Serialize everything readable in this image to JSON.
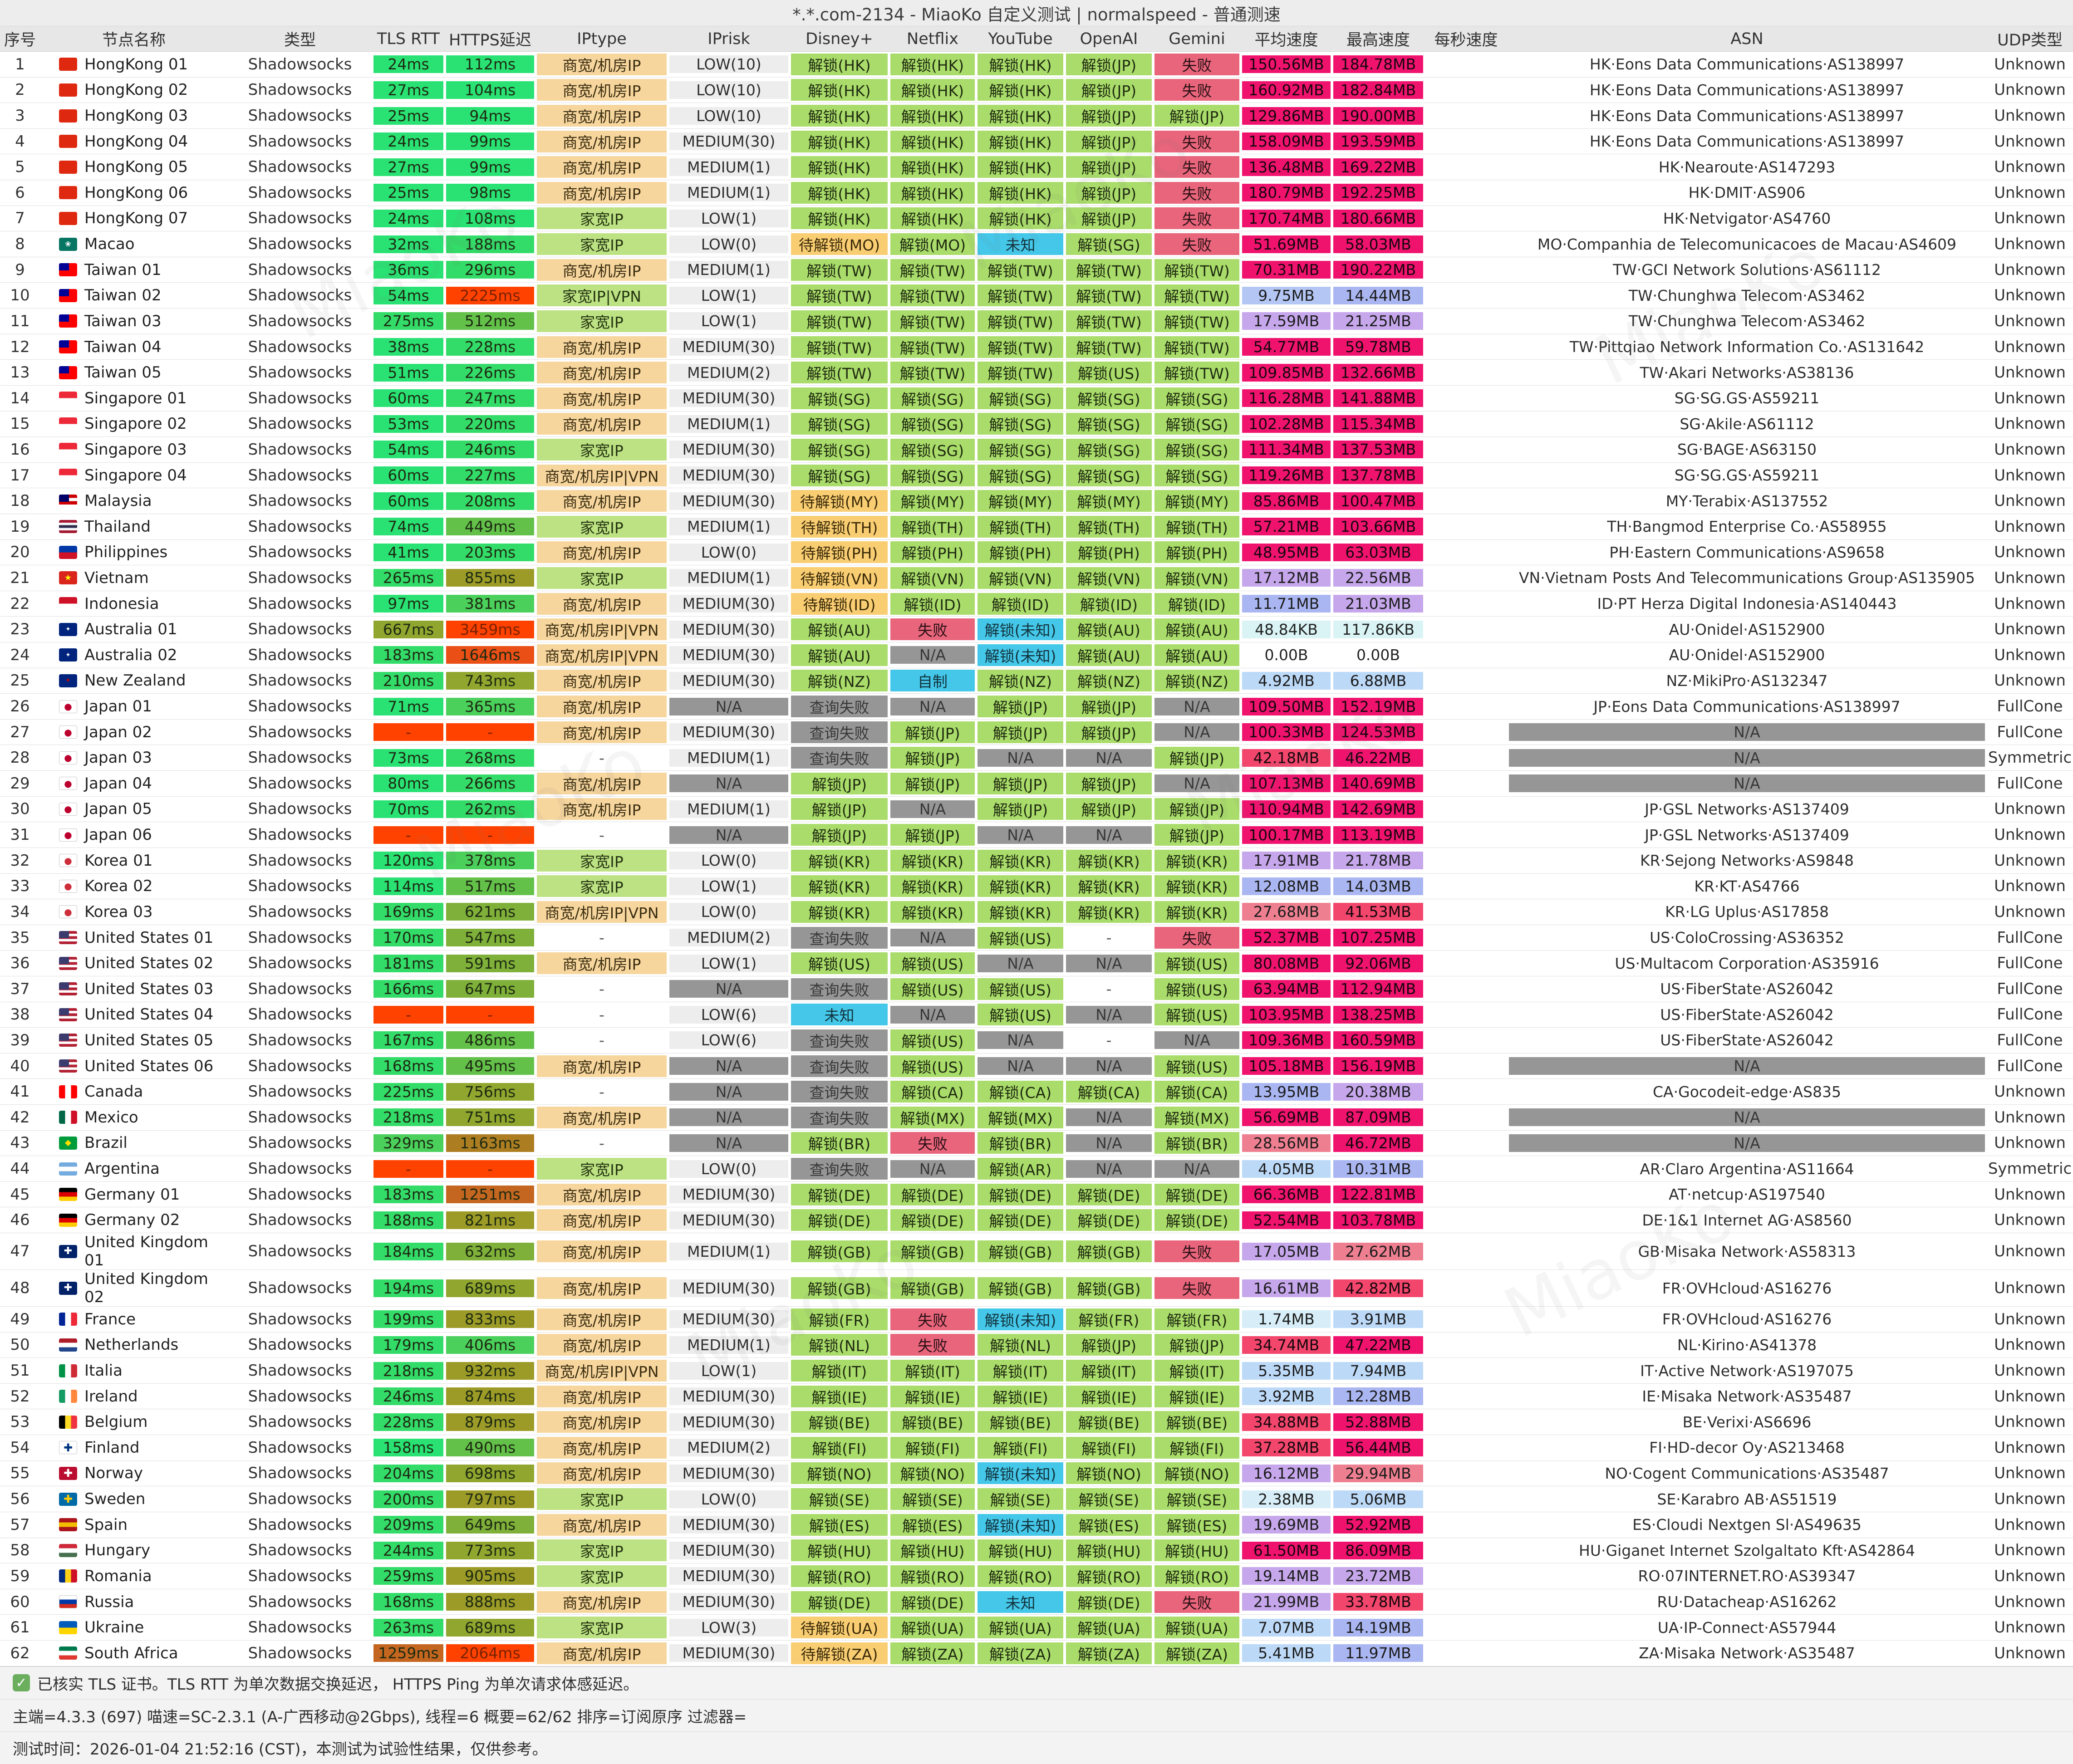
{
  "title": "*.*.com-2134 - MiaoKo 自定义测试 | normalspeed - 普通测速",
  "watermark": "MiaoKo",
  "header": {
    "cols": [
      "序号",
      "节点名称",
      "类型",
      "TLS RTT",
      "HTTPS延迟",
      "IPtype",
      "IPrisk",
      "Disney+",
      "Netflix",
      "YouTube",
      "OpenAI",
      "Gemini",
      "平均速度",
      "最高速度",
      "每秒速度",
      "ASN",
      "UDP类型"
    ]
  },
  "footer": {
    "check_icon": "✓",
    "line1": "已核实 TLS 证书。TLS RTT 为单次数据交换延迟， HTTPS Ping 为单次请求体感延迟。",
    "line2": "主端=4.3.3 (697) 喵速=SC-2.3.1 (A-广西移动@2Gbps), 线程=6 概要=62/62 排序=订阅原序 过滤器=",
    "line3": "测试时间：2026-01-04 21:52:16 (CST)，本测试为试验性结果，仅供参考。"
  },
  "colors": {
    "unlock_green": "#a9dc6a",
    "pending_orange": "#f9cd72",
    "fail_red": "#e8657b",
    "unknown_cyan": "#44c7e8",
    "na_gray": "#969696",
    "iptype_orange": "#f7d69e",
    "iptype_green": "#bce283",
    "speed_hot_pink": "#f0136e",
    "latency_green": "#29e273",
    "latency_red": "#ff4200"
  },
  "row_keys": [
    "flag",
    "name",
    "type",
    "tls",
    "https",
    "iptype",
    "iprisk",
    "disney",
    "netflix",
    "youtube",
    "openai",
    "gemini",
    "avg_speed",
    "max_speed",
    "asn",
    "udp"
  ],
  "rows": [
    [
      "HK",
      "HongKong 01",
      "Shadowsocks",
      "24ms",
      "112ms",
      "商宽/机房IP",
      "LOW(10)",
      "解锁(HK)",
      "解锁(HK)",
      "解锁(HK)",
      "解锁(JP)",
      "失败",
      "150.56MB",
      "184.78MB",
      "HK·Eons Data Communications·AS138997",
      "Unknown"
    ],
    [
      "HK",
      "HongKong 02",
      "Shadowsocks",
      "27ms",
      "104ms",
      "商宽/机房IP",
      "LOW(10)",
      "解锁(HK)",
      "解锁(HK)",
      "解锁(HK)",
      "解锁(JP)",
      "失败",
      "160.92MB",
      "182.84MB",
      "HK·Eons Data Communications·AS138997",
      "Unknown"
    ],
    [
      "HK",
      "HongKong 03",
      "Shadowsocks",
      "25ms",
      "94ms",
      "商宽/机房IP",
      "LOW(10)",
      "解锁(HK)",
      "解锁(HK)",
      "解锁(HK)",
      "解锁(JP)",
      "解锁(JP)",
      "129.86MB",
      "190.00MB",
      "HK·Eons Data Communications·AS138997",
      "Unknown"
    ],
    [
      "HK",
      "HongKong 04",
      "Shadowsocks",
      "24ms",
      "99ms",
      "商宽/机房IP",
      "MEDIUM(30)",
      "解锁(HK)",
      "解锁(HK)",
      "解锁(HK)",
      "解锁(JP)",
      "失败",
      "158.09MB",
      "193.59MB",
      "HK·Eons Data Communications·AS138997",
      "Unknown"
    ],
    [
      "HK",
      "HongKong 05",
      "Shadowsocks",
      "27ms",
      "99ms",
      "商宽/机房IP",
      "MEDIUM(1)",
      "解锁(HK)",
      "解锁(HK)",
      "解锁(HK)",
      "解锁(JP)",
      "失败",
      "136.48MB",
      "169.22MB",
      "HK·Nearoute·AS147293",
      "Unknown"
    ],
    [
      "HK",
      "HongKong 06",
      "Shadowsocks",
      "25ms",
      "98ms",
      "商宽/机房IP",
      "MEDIUM(1)",
      "解锁(HK)",
      "解锁(HK)",
      "解锁(HK)",
      "解锁(JP)",
      "失败",
      "180.79MB",
      "192.25MB",
      "HK·DMIT·AS906",
      "Unknown"
    ],
    [
      "HK",
      "HongKong 07",
      "Shadowsocks",
      "24ms",
      "108ms",
      "家宽IP",
      "LOW(1)",
      "解锁(HK)",
      "解锁(HK)",
      "解锁(HK)",
      "解锁(JP)",
      "失败",
      "170.74MB",
      "180.66MB",
      "HK·Netvigator·AS4760",
      "Unknown"
    ],
    [
      "MO",
      "Macao",
      "Shadowsocks",
      "32ms",
      "188ms",
      "家宽IP",
      "LOW(0)",
      "待解锁(MO)",
      "解锁(MO)",
      "未知",
      "解锁(SG)",
      "失败",
      "51.69MB",
      "58.03MB",
      "MO·Companhia de Telecomunicacoes de Macau·AS4609",
      "Unknown"
    ],
    [
      "TW",
      "Taiwan 01",
      "Shadowsocks",
      "36ms",
      "296ms",
      "商宽/机房IP",
      "MEDIUM(1)",
      "解锁(TW)",
      "解锁(TW)",
      "解锁(TW)",
      "解锁(TW)",
      "解锁(TW)",
      "70.31MB",
      "190.22MB",
      "TW·GCI Network Solutions·AS61112",
      "Unknown"
    ],
    [
      "TW",
      "Taiwan 02",
      "Shadowsocks",
      "54ms",
      "2225ms",
      "家宽IP|VPN",
      "LOW(1)",
      "解锁(TW)",
      "解锁(TW)",
      "解锁(TW)",
      "解锁(TW)",
      "解锁(TW)",
      "9.75MB",
      "14.44MB",
      "TW·Chunghwa Telecom·AS3462",
      "Unknown"
    ],
    [
      "TW",
      "Taiwan 03",
      "Shadowsocks",
      "275ms",
      "512ms",
      "家宽IP",
      "LOW(1)",
      "解锁(TW)",
      "解锁(TW)",
      "解锁(TW)",
      "解锁(TW)",
      "解锁(TW)",
      "17.59MB",
      "21.25MB",
      "TW·Chunghwa Telecom·AS3462",
      "Unknown"
    ],
    [
      "TW",
      "Taiwan 04",
      "Shadowsocks",
      "38ms",
      "228ms",
      "商宽/机房IP",
      "MEDIUM(30)",
      "解锁(TW)",
      "解锁(TW)",
      "解锁(TW)",
      "解锁(TW)",
      "解锁(TW)",
      "54.77MB",
      "59.78MB",
      "TW·Pittqiao Network Information Co.·AS131642",
      "Unknown"
    ],
    [
      "TW",
      "Taiwan 05",
      "Shadowsocks",
      "51ms",
      "226ms",
      "商宽/机房IP",
      "MEDIUM(2)",
      "解锁(TW)",
      "解锁(TW)",
      "解锁(TW)",
      "解锁(US)",
      "解锁(TW)",
      "109.85MB",
      "132.66MB",
      "TW·Akari Networks·AS38136",
      "Unknown"
    ],
    [
      "SG",
      "Singapore 01",
      "Shadowsocks",
      "60ms",
      "247ms",
      "商宽/机房IP",
      "MEDIUM(30)",
      "解锁(SG)",
      "解锁(SG)",
      "解锁(SG)",
      "解锁(SG)",
      "解锁(SG)",
      "116.28MB",
      "141.88MB",
      "SG·SG.GS·AS59211",
      "Unknown"
    ],
    [
      "SG",
      "Singapore 02",
      "Shadowsocks",
      "53ms",
      "220ms",
      "商宽/机房IP",
      "MEDIUM(1)",
      "解锁(SG)",
      "解锁(SG)",
      "解锁(SG)",
      "解锁(SG)",
      "解锁(SG)",
      "102.28MB",
      "115.34MB",
      "SG·Akile·AS61112",
      "Unknown"
    ],
    [
      "SG",
      "Singapore 03",
      "Shadowsocks",
      "54ms",
      "246ms",
      "家宽IP",
      "MEDIUM(30)",
      "解锁(SG)",
      "解锁(SG)",
      "解锁(SG)",
      "解锁(SG)",
      "解锁(SG)",
      "111.34MB",
      "137.53MB",
      "SG·BAGE·AS63150",
      "Unknown"
    ],
    [
      "SG",
      "Singapore 04",
      "Shadowsocks",
      "60ms",
      "227ms",
      "商宽/机房IP|VPN",
      "MEDIUM(30)",
      "解锁(SG)",
      "解锁(SG)",
      "解锁(SG)",
      "解锁(SG)",
      "解锁(SG)",
      "119.26MB",
      "137.78MB",
      "SG·SG.GS·AS59211",
      "Unknown"
    ],
    [
      "MY",
      "Malaysia",
      "Shadowsocks",
      "60ms",
      "208ms",
      "商宽/机房IP",
      "MEDIUM(30)",
      "待解锁(MY)",
      "解锁(MY)",
      "解锁(MY)",
      "解锁(MY)",
      "解锁(MY)",
      "85.86MB",
      "100.47MB",
      "MY·Terabix·AS137552",
      "Unknown"
    ],
    [
      "TH",
      "Thailand",
      "Shadowsocks",
      "74ms",
      "449ms",
      "家宽IP",
      "MEDIUM(1)",
      "待解锁(TH)",
      "解锁(TH)",
      "解锁(TH)",
      "解锁(TH)",
      "解锁(TH)",
      "57.21MB",
      "103.66MB",
      "TH·Bangmod Enterprise Co.·AS58955",
      "Unknown"
    ],
    [
      "PH",
      "Philippines",
      "Shadowsocks",
      "41ms",
      "203ms",
      "商宽/机房IP",
      "LOW(0)",
      "待解锁(PH)",
      "解锁(PH)",
      "解锁(PH)",
      "解锁(PH)",
      "解锁(PH)",
      "48.95MB",
      "63.03MB",
      "PH·Eastern Communications·AS9658",
      "Unknown"
    ],
    [
      "VN",
      "Vietnam",
      "Shadowsocks",
      "265ms",
      "855ms",
      "家宽IP",
      "MEDIUM(1)",
      "待解锁(VN)",
      "解锁(VN)",
      "解锁(VN)",
      "解锁(VN)",
      "解锁(VN)",
      "17.12MB",
      "22.56MB",
      "VN·Vietnam Posts And Telecommunications Group·AS135905",
      "Unknown"
    ],
    [
      "ID",
      "Indonesia",
      "Shadowsocks",
      "97ms",
      "381ms",
      "商宽/机房IP",
      "MEDIUM(30)",
      "待解锁(ID)",
      "解锁(ID)",
      "解锁(ID)",
      "解锁(ID)",
      "解锁(ID)",
      "11.71MB",
      "21.03MB",
      "ID·PT Herza Digital Indonesia·AS140443",
      "Unknown"
    ],
    [
      "AU",
      "Australia 01",
      "Shadowsocks",
      "667ms",
      "3459ms",
      "商宽/机房IP|VPN",
      "MEDIUM(30)",
      "解锁(AU)",
      "失败",
      "解锁(未知)",
      "解锁(AU)",
      "解锁(AU)",
      "48.84KB",
      "117.86KB",
      "AU·Onidel·AS152900",
      "Unknown"
    ],
    [
      "AU",
      "Australia 02",
      "Shadowsocks",
      "183ms",
      "1646ms",
      "商宽/机房IP|VPN",
      "MEDIUM(30)",
      "解锁(AU)",
      "N/A",
      "解锁(未知)",
      "解锁(AU)",
      "解锁(AU)",
      "0.00B",
      "0.00B",
      "AU·Onidel·AS152900",
      "Unknown"
    ],
    [
      "NZ",
      "New Zealand",
      "Shadowsocks",
      "210ms",
      "743ms",
      "商宽/机房IP",
      "MEDIUM(30)",
      "解锁(NZ)",
      "自制",
      "解锁(NZ)",
      "解锁(NZ)",
      "解锁(NZ)",
      "4.92MB",
      "6.88MB",
      "NZ·MikiPro·AS132347",
      "Unknown"
    ],
    [
      "JP",
      "Japan 01",
      "Shadowsocks",
      "71ms",
      "365ms",
      "商宽/机房IP",
      "N/A",
      "查询失败",
      "N/A",
      "解锁(JP)",
      "解锁(JP)",
      "N/A",
      "109.50MB",
      "152.19MB",
      "JP·Eons Data Communications·AS138997",
      "FullCone"
    ],
    [
      "JP",
      "Japan 02",
      "Shadowsocks",
      "-",
      "-",
      "商宽/机房IP",
      "MEDIUM(30)",
      "查询失败",
      "解锁(JP)",
      "解锁(JP)",
      "解锁(JP)",
      "N/A",
      "100.33MB",
      "124.53MB",
      "N/A",
      "FullCone"
    ],
    [
      "JP",
      "Japan 03",
      "Shadowsocks",
      "73ms",
      "268ms",
      "-",
      "MEDIUM(1)",
      "查询失败",
      "解锁(JP)",
      "N/A",
      "N/A",
      "解锁(JP)",
      "42.18MB",
      "46.22MB",
      "N/A",
      "Symmetric"
    ],
    [
      "JP",
      "Japan 04",
      "Shadowsocks",
      "80ms",
      "266ms",
      "商宽/机房IP",
      "N/A",
      "解锁(JP)",
      "解锁(JP)",
      "解锁(JP)",
      "解锁(JP)",
      "N/A",
      "107.13MB",
      "140.69MB",
      "N/A",
      "FullCone"
    ],
    [
      "JP",
      "Japan 05",
      "Shadowsocks",
      "70ms",
      "262ms",
      "商宽/机房IP",
      "MEDIUM(1)",
      "解锁(JP)",
      "N/A",
      "解锁(JP)",
      "解锁(JP)",
      "解锁(JP)",
      "110.94MB",
      "142.69MB",
      "JP·GSL Networks·AS137409",
      "Unknown"
    ],
    [
      "JP",
      "Japan 06",
      "Shadowsocks",
      "-",
      "-",
      "-",
      "N/A",
      "解锁(JP)",
      "解锁(JP)",
      "N/A",
      "N/A",
      "解锁(JP)",
      "100.17MB",
      "113.19MB",
      "JP·GSL Networks·AS137409",
      "Unknown"
    ],
    [
      "KR",
      "Korea 01",
      "Shadowsocks",
      "120ms",
      "378ms",
      "家宽IP",
      "LOW(0)",
      "解锁(KR)",
      "解锁(KR)",
      "解锁(KR)",
      "解锁(KR)",
      "解锁(KR)",
      "17.91MB",
      "21.78MB",
      "KR·Sejong Networks·AS9848",
      "Unknown"
    ],
    [
      "KR",
      "Korea 02",
      "Shadowsocks",
      "114ms",
      "517ms",
      "家宽IP",
      "LOW(1)",
      "解锁(KR)",
      "解锁(KR)",
      "解锁(KR)",
      "解锁(KR)",
      "解锁(KR)",
      "12.08MB",
      "14.03MB",
      "KR·KT·AS4766",
      "Unknown"
    ],
    [
      "KR",
      "Korea 03",
      "Shadowsocks",
      "169ms",
      "621ms",
      "商宽/机房IP|VPN",
      "LOW(0)",
      "解锁(KR)",
      "解锁(KR)",
      "解锁(KR)",
      "解锁(KR)",
      "解锁(KR)",
      "27.68MB",
      "41.53MB",
      "KR·LG Uplus·AS17858",
      "Unknown"
    ],
    [
      "US",
      "United States 01",
      "Shadowsocks",
      "170ms",
      "547ms",
      "-",
      "MEDIUM(2)",
      "查询失败",
      "N/A",
      "解锁(US)",
      "-",
      "失败",
      "52.37MB",
      "107.25MB",
      "US·ColoCrossing·AS36352",
      "FullCone"
    ],
    [
      "US",
      "United States 02",
      "Shadowsocks",
      "181ms",
      "591ms",
      "商宽/机房IP",
      "LOW(1)",
      "解锁(US)",
      "解锁(US)",
      "N/A",
      "N/A",
      "解锁(US)",
      "80.08MB",
      "92.06MB",
      "US·Multacom Corporation·AS35916",
      "FullCone"
    ],
    [
      "US",
      "United States 03",
      "Shadowsocks",
      "166ms",
      "647ms",
      "-",
      "N/A",
      "查询失败",
      "解锁(US)",
      "解锁(US)",
      "-",
      "解锁(US)",
      "63.94MB",
      "112.94MB",
      "US·FiberState·AS26042",
      "FullCone"
    ],
    [
      "US",
      "United States 04",
      "Shadowsocks",
      "-",
      "-",
      "-",
      "LOW(6)",
      "未知",
      "N/A",
      "解锁(US)",
      "N/A",
      "解锁(US)",
      "103.95MB",
      "138.25MB",
      "US·FiberState·AS26042",
      "FullCone"
    ],
    [
      "US",
      "United States 05",
      "Shadowsocks",
      "167ms",
      "486ms",
      "-",
      "LOW(6)",
      "查询失败",
      "解锁(US)",
      "N/A",
      "-",
      "N/A",
      "109.36MB",
      "160.59MB",
      "US·FiberState·AS26042",
      "FullCone"
    ],
    [
      "US",
      "United States 06",
      "Shadowsocks",
      "168ms",
      "495ms",
      "商宽/机房IP",
      "N/A",
      "查询失败",
      "解锁(US)",
      "N/A",
      "N/A",
      "解锁(US)",
      "105.18MB",
      "156.19MB",
      "N/A",
      "FullCone"
    ],
    [
      "CA",
      "Canada",
      "Shadowsocks",
      "225ms",
      "756ms",
      "-",
      "N/A",
      "查询失败",
      "解锁(CA)",
      "解锁(CA)",
      "解锁(CA)",
      "解锁(CA)",
      "13.95MB",
      "20.38MB",
      "CA·Gocodeit-edge·AS835",
      "Unknown"
    ],
    [
      "MX",
      "Mexico",
      "Shadowsocks",
      "218ms",
      "751ms",
      "商宽/机房IP",
      "N/A",
      "查询失败",
      "解锁(MX)",
      "解锁(MX)",
      "N/A",
      "解锁(MX)",
      "56.69MB",
      "87.09MB",
      "N/A",
      "Unknown"
    ],
    [
      "BR",
      "Brazil",
      "Shadowsocks",
      "329ms",
      "1163ms",
      "-",
      "N/A",
      "解锁(BR)",
      "失败",
      "解锁(BR)",
      "N/A",
      "解锁(BR)",
      "28.56MB",
      "46.72MB",
      "N/A",
      "Unknown"
    ],
    [
      "AR",
      "Argentina",
      "Shadowsocks",
      "-",
      "-",
      "家宽IP",
      "LOW(0)",
      "查询失败",
      "N/A",
      "解锁(AR)",
      "N/A",
      "N/A",
      "4.05MB",
      "10.31MB",
      "AR·Claro Argentina·AS11664",
      "Symmetric"
    ],
    [
      "DE",
      "Germany 01",
      "Shadowsocks",
      "183ms",
      "1251ms",
      "商宽/机房IP",
      "MEDIUM(30)",
      "解锁(DE)",
      "解锁(DE)",
      "解锁(DE)",
      "解锁(DE)",
      "解锁(DE)",
      "66.36MB",
      "122.81MB",
      "AT·netcup·AS197540",
      "Unknown"
    ],
    [
      "DE",
      "Germany 02",
      "Shadowsocks",
      "188ms",
      "821ms",
      "商宽/机房IP",
      "MEDIUM(30)",
      "解锁(DE)",
      "解锁(DE)",
      "解锁(DE)",
      "解锁(DE)",
      "解锁(DE)",
      "52.54MB",
      "103.78MB",
      "DE·1&1 Internet AG·AS8560",
      "Unknown"
    ],
    [
      "GB",
      "United Kingdom 01",
      "Shadowsocks",
      "184ms",
      "632ms",
      "商宽/机房IP",
      "MEDIUM(1)",
      "解锁(GB)",
      "解锁(GB)",
      "解锁(GB)",
      "解锁(GB)",
      "失败",
      "17.05MB",
      "27.62MB",
      "GB·Misaka Network·AS58313",
      "Unknown"
    ],
    [
      "GB",
      "United Kingdom 02",
      "Shadowsocks",
      "194ms",
      "689ms",
      "商宽/机房IP",
      "MEDIUM(30)",
      "解锁(GB)",
      "解锁(GB)",
      "解锁(GB)",
      "解锁(GB)",
      "失败",
      "16.61MB",
      "42.82MB",
      "FR·OVHcloud·AS16276",
      "Unknown"
    ],
    [
      "FR",
      "France",
      "Shadowsocks",
      "199ms",
      "833ms",
      "商宽/机房IP",
      "MEDIUM(30)",
      "解锁(FR)",
      "失败",
      "解锁(未知)",
      "解锁(FR)",
      "解锁(FR)",
      "1.74MB",
      "3.91MB",
      "FR·OVHcloud·AS16276",
      "Unknown"
    ],
    [
      "NL",
      "Netherlands",
      "Shadowsocks",
      "179ms",
      "406ms",
      "商宽/机房IP",
      "MEDIUM(1)",
      "解锁(NL)",
      "失败",
      "解锁(NL)",
      "解锁(JP)",
      "解锁(JP)",
      "34.74MB",
      "47.22MB",
      "NL·Kirino·AS41378",
      "Unknown"
    ],
    [
      "IT",
      "Italia",
      "Shadowsocks",
      "218ms",
      "932ms",
      "商宽/机房IP|VPN",
      "LOW(1)",
      "解锁(IT)",
      "解锁(IT)",
      "解锁(IT)",
      "解锁(IT)",
      "解锁(IT)",
      "5.35MB",
      "7.94MB",
      "IT·Active Network·AS197075",
      "Unknown"
    ],
    [
      "IE",
      "Ireland",
      "Shadowsocks",
      "246ms",
      "874ms",
      "商宽/机房IP",
      "MEDIUM(30)",
      "解锁(IE)",
      "解锁(IE)",
      "解锁(IE)",
      "解锁(IE)",
      "解锁(IE)",
      "3.92MB",
      "12.28MB",
      "IE·Misaka Network·AS35487",
      "Unknown"
    ],
    [
      "BE",
      "Belgium",
      "Shadowsocks",
      "228ms",
      "879ms",
      "商宽/机房IP",
      "MEDIUM(30)",
      "解锁(BE)",
      "解锁(BE)",
      "解锁(BE)",
      "解锁(BE)",
      "解锁(BE)",
      "34.88MB",
      "52.88MB",
      "BE·Verixi·AS6696",
      "Unknown"
    ],
    [
      "FI",
      "Finland",
      "Shadowsocks",
      "158ms",
      "490ms",
      "商宽/机房IP",
      "MEDIUM(2)",
      "解锁(FI)",
      "解锁(FI)",
      "解锁(FI)",
      "解锁(FI)",
      "解锁(FI)",
      "37.28MB",
      "56.44MB",
      "FI·HD-decor Oy·AS213468",
      "Unknown"
    ],
    [
      "NO",
      "Norway",
      "Shadowsocks",
      "204ms",
      "698ms",
      "商宽/机房IP",
      "MEDIUM(30)",
      "解锁(NO)",
      "解锁(NO)",
      "解锁(未知)",
      "解锁(NO)",
      "解锁(NO)",
      "16.12MB",
      "29.94MB",
      "NO·Cogent Communications·AS35487",
      "Unknown"
    ],
    [
      "SE",
      "Sweden",
      "Shadowsocks",
      "200ms",
      "797ms",
      "家宽IP",
      "LOW(0)",
      "解锁(SE)",
      "解锁(SE)",
      "解锁(SE)",
      "解锁(SE)",
      "解锁(SE)",
      "2.38MB",
      "5.06MB",
      "SE·Karabro AB·AS51519",
      "Unknown"
    ],
    [
      "ES",
      "Spain",
      "Shadowsocks",
      "209ms",
      "649ms",
      "商宽/机房IP",
      "MEDIUM(30)",
      "解锁(ES)",
      "解锁(ES)",
      "解锁(未知)",
      "解锁(ES)",
      "解锁(ES)",
      "19.69MB",
      "52.92MB",
      "ES·Cloudi Nextgen Sl·AS49635",
      "Unknown"
    ],
    [
      "HU",
      "Hungary",
      "Shadowsocks",
      "244ms",
      "773ms",
      "家宽IP",
      "MEDIUM(30)",
      "解锁(HU)",
      "解锁(HU)",
      "解锁(HU)",
      "解锁(HU)",
      "解锁(HU)",
      "61.50MB",
      "86.09MB",
      "HU·Giganet Internet Szolgaltato Kft·AS42864",
      "Unknown"
    ],
    [
      "RO",
      "Romania",
      "Shadowsocks",
      "259ms",
      "905ms",
      "家宽IP",
      "MEDIUM(30)",
      "解锁(RO)",
      "解锁(RO)",
      "解锁(RO)",
      "解锁(RO)",
      "解锁(RO)",
      "19.14MB",
      "23.72MB",
      "RO·07INTERNET.RO·AS39347",
      "Unknown"
    ],
    [
      "RU",
      "Russia",
      "Shadowsocks",
      "168ms",
      "888ms",
      "商宽/机房IP",
      "MEDIUM(30)",
      "解锁(DE)",
      "解锁(DE)",
      "未知",
      "解锁(DE)",
      "失败",
      "21.99MB",
      "33.78MB",
      "RU·Datacheap·AS16262",
      "Unknown"
    ],
    [
      "UA",
      "Ukraine",
      "Shadowsocks",
      "263ms",
      "689ms",
      "家宽IP",
      "LOW(3)",
      "待解锁(UA)",
      "解锁(UA)",
      "解锁(UA)",
      "解锁(UA)",
      "解锁(UA)",
      "7.07MB",
      "14.19MB",
      "UA·IP-Connect·AS57944",
      "Unknown"
    ],
    [
      "ZA",
      "South Africa",
      "Shadowsocks",
      "1259ms",
      "2064ms",
      "商宽/机房IP",
      "MEDIUM(30)",
      "待解锁(ZA)",
      "解锁(ZA)",
      "解锁(ZA)",
      "解锁(ZA)",
      "解锁(ZA)",
      "5.41MB",
      "11.97MB",
      "ZA·Misaka Network·AS35487",
      "Unknown"
    ]
  ]
}
